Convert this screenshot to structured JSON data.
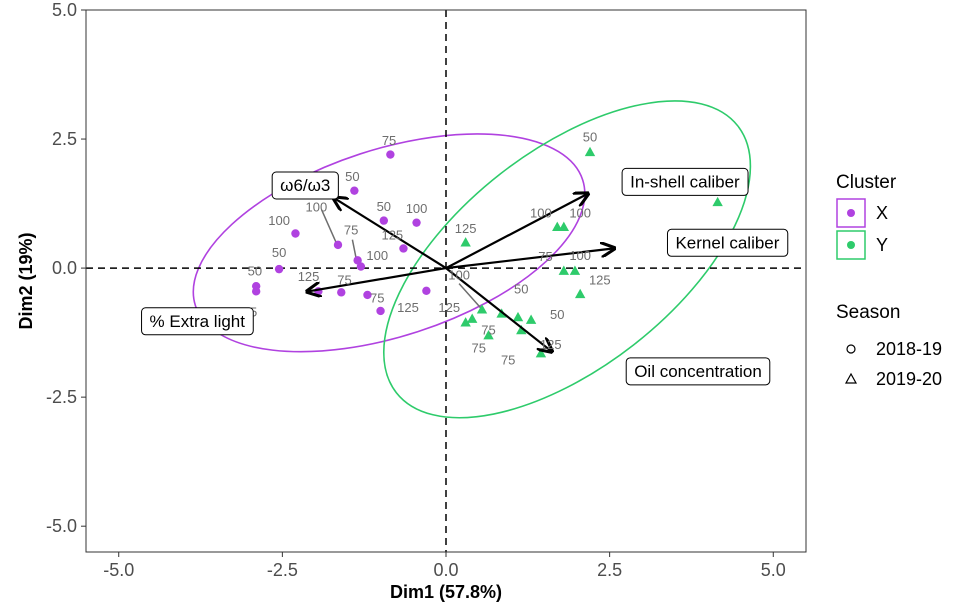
{
  "chart_data": {
    "type": "scatter",
    "subtype": "PCA biplot",
    "xlabel": "Dim1 (57.8%)",
    "ylabel": "Dim2 (19%)",
    "xlim": [
      -5.5,
      5.5
    ],
    "ylim": [
      -5.5,
      5.0
    ],
    "xticks": [
      -5.0,
      -2.5,
      0.0,
      2.5,
      5.0
    ],
    "yticks": [
      -5.0,
      -2.5,
      0.0,
      2.5,
      5.0
    ],
    "xtick_labels": [
      "-5.0",
      "-2.5",
      "0.0",
      "2.5",
      "5.0"
    ],
    "ytick_labels": [
      "-5.0",
      "-2.5",
      "0.0",
      "2.5",
      "5.0"
    ],
    "grid": false,
    "reference_lines": {
      "x": 0,
      "y": 0,
      "style": "dashed"
    },
    "colors": {
      "X": "#b042e0",
      "Y": "#2ecb6b"
    },
    "legend": {
      "placement": "right",
      "cluster_title": "Cluster",
      "cluster_entries": [
        {
          "label": "X",
          "color": "#b042e0"
        },
        {
          "label": "Y",
          "color": "#2ecb6b"
        }
      ],
      "season_title": "Season",
      "season_entries": [
        {
          "label": "2018-19",
          "shape": "circle"
        },
        {
          "label": "2019-20",
          "shape": "triangle"
        }
      ]
    },
    "series": [
      {
        "name": "X",
        "color": "#b042e0",
        "shape": "circle",
        "points": [
          {
            "x": -0.85,
            "y": 2.2
          },
          {
            "x": -1.4,
            "y": 1.5
          },
          {
            "x": -0.95,
            "y": 0.92
          },
          {
            "x": -0.45,
            "y": 0.88
          },
          {
            "x": -2.3,
            "y": 0.67
          },
          {
            "x": -1.65,
            "y": 0.45
          },
          {
            "x": -0.65,
            "y": 0.38
          },
          {
            "x": -1.35,
            "y": 0.15
          },
          {
            "x": -1.3,
            "y": 0.03
          },
          {
            "x": -2.55,
            "y": -0.02
          },
          {
            "x": -2.9,
            "y": -0.35
          },
          {
            "x": -2.9,
            "y": -0.45
          },
          {
            "x": -1.95,
            "y": -0.45
          },
          {
            "x": -1.6,
            "y": -0.47
          },
          {
            "x": -1.2,
            "y": -0.52
          },
          {
            "x": -0.3,
            "y": -0.44
          },
          {
            "x": -1.0,
            "y": -0.83
          }
        ],
        "ellipse": {
          "cx": -0.87,
          "cy": 0.49,
          "rx": 3.11,
          "ry": 1.81,
          "angle_deg": 18
        }
      },
      {
        "name": "Y",
        "color": "#2ecb6b",
        "shape": "triangle",
        "points": [
          {
            "x": 2.2,
            "y": 2.25
          },
          {
            "x": 4.15,
            "y": 1.28
          },
          {
            "x": 1.7,
            "y": 0.8
          },
          {
            "x": 1.8,
            "y": 0.8
          },
          {
            "x": 0.3,
            "y": 0.5
          },
          {
            "x": 1.8,
            "y": -0.05
          },
          {
            "x": 1.97,
            "y": -0.05
          },
          {
            "x": 2.05,
            "y": -0.5
          },
          {
            "x": 0.55,
            "y": -0.8
          },
          {
            "x": 0.85,
            "y": -0.88
          },
          {
            "x": 1.1,
            "y": -0.95
          },
          {
            "x": 1.3,
            "y": -1.0
          },
          {
            "x": 0.4,
            "y": -0.98
          },
          {
            "x": 0.3,
            "y": -1.05
          },
          {
            "x": 0.65,
            "y": -1.3
          },
          {
            "x": 1.15,
            "y": -1.2
          },
          {
            "x": 1.45,
            "y": -1.65
          }
        ],
        "ellipse": {
          "cx": 1.85,
          "cy": 0.17,
          "rx": 3.31,
          "ry": 2.1,
          "angle_deg": 38
        }
      }
    ],
    "point_labels": [
      {
        "text": "75",
        "x": -0.87,
        "y": 2.45
      },
      {
        "text": "50",
        "x": -1.43,
        "y": 1.75
      },
      {
        "text": "100",
        "x": -2.55,
        "y": 0.9
      },
      {
        "text": "100",
        "x": -1.98,
        "y": 1.16
      },
      {
        "text": "50",
        "x": -0.95,
        "y": 1.17
      },
      {
        "text": "100",
        "x": -0.45,
        "y": 1.13
      },
      {
        "text": "75",
        "x": -1.45,
        "y": 0.72
      },
      {
        "text": "125",
        "x": -0.82,
        "y": 0.62
      },
      {
        "text": "50",
        "x": -2.55,
        "y": 0.28
      },
      {
        "text": "100",
        "x": -1.05,
        "y": 0.22
      },
      {
        "text": "75",
        "x": -1.55,
        "y": -0.25
      },
      {
        "text": "125",
        "x": -2.1,
        "y": -0.18
      },
      {
        "text": "75",
        "x": -1.05,
        "y": -0.6
      },
      {
        "text": "125",
        "x": -0.58,
        "y": -0.78
      },
      {
        "text": "125",
        "x": -3.05,
        "y": -0.87
      },
      {
        "text": "50",
        "x": -2.92,
        "y": -0.08
      },
      {
        "text": "50",
        "x": 2.2,
        "y": 2.52
      },
      {
        "text": "100",
        "x": 1.45,
        "y": 1.05
      },
      {
        "text": "100",
        "x": 2.05,
        "y": 1.05
      },
      {
        "text": "125",
        "x": 0.3,
        "y": 0.75
      },
      {
        "text": "75",
        "x": 1.52,
        "y": 0.2
      },
      {
        "text": "100",
        "x": 2.05,
        "y": 0.22
      },
      {
        "text": "125",
        "x": 2.35,
        "y": -0.25
      },
      {
        "text": "100",
        "x": 0.2,
        "y": -0.15
      },
      {
        "text": "50",
        "x": 1.15,
        "y": -0.43
      },
      {
        "text": "75",
        "x": 0.65,
        "y": -1.22
      },
      {
        "text": "50",
        "x": 1.7,
        "y": -0.92
      },
      {
        "text": "125",
        "x": 0.05,
        "y": -0.78
      },
      {
        "text": "75",
        "x": 0.5,
        "y": -1.57
      },
      {
        "text": "75",
        "x": 0.95,
        "y": -1.8
      },
      {
        "text": "125",
        "x": 1.6,
        "y": -1.5
      }
    ],
    "label_connectors": [
      {
        "from": [
          -1.9,
          1.13
        ],
        "to": [
          -1.67,
          0.47
        ]
      },
      {
        "from": [
          0.2,
          -0.3
        ],
        "to": [
          0.55,
          -0.8
        ]
      },
      {
        "from": [
          -1.43,
          0.55
        ],
        "to": [
          -1.37,
          0.17
        ]
      }
    ],
    "arrows": [
      {
        "label": "ω6/ω3",
        "x": -1.7,
        "y": 1.35,
        "label_x": -2.15,
        "label_y": 1.6
      },
      {
        "label": "% Extra light",
        "x": -2.1,
        "y": -0.45,
        "label_x": -3.8,
        "label_y": -1.03
      },
      {
        "label": "In-shell caliber",
        "x": 2.15,
        "y": 1.43,
        "label_x": 3.65,
        "label_y": 1.67
      },
      {
        "label": "Kernel caliber",
        "x": 2.55,
        "y": 0.38,
        "label_x": 4.3,
        "label_y": 0.49
      },
      {
        "label": "Oil concentration",
        "x": 1.6,
        "y": -1.6,
        "label_x": 3.85,
        "label_y": -2.0
      }
    ]
  }
}
